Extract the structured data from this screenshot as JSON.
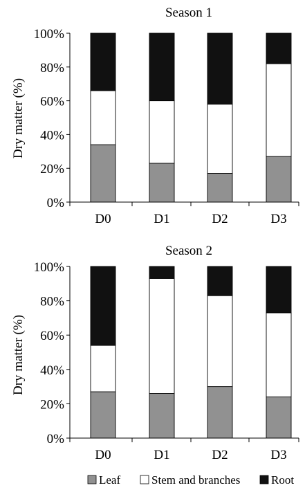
{
  "chart_data": [
    {
      "type": "bar",
      "stacked": true,
      "title": "Season 1",
      "ylabel": "Dry matter (%)",
      "xlabel": "",
      "ylim": [
        0,
        100
      ],
      "yticks": [
        "0%",
        "20%",
        "40%",
        "60%",
        "80%",
        "100%"
      ],
      "categories": [
        "D0",
        "D1",
        "D2",
        "D3"
      ],
      "series": [
        {
          "name": "Leaf",
          "values": [
            34,
            23,
            17,
            27
          ]
        },
        {
          "name": "Stem and branches",
          "values": [
            32,
            37,
            41,
            55
          ]
        },
        {
          "name": "Root",
          "values": [
            34,
            40,
            42,
            18
          ]
        }
      ],
      "grid": false
    },
    {
      "type": "bar",
      "stacked": true,
      "title": "Season 2",
      "ylabel": "Dry matter (%)",
      "xlabel": "",
      "ylim": [
        0,
        100
      ],
      "yticks": [
        "0%",
        "20%",
        "40%",
        "60%",
        "80%",
        "100%"
      ],
      "categories": [
        "D0",
        "D1",
        "D2",
        "D3"
      ],
      "series": [
        {
          "name": "Leaf",
          "values": [
            27,
            26,
            30,
            24
          ]
        },
        {
          "name": "Stem and branches",
          "values": [
            27,
            67,
            53,
            49
          ]
        },
        {
          "name": "Root",
          "values": [
            46,
            7,
            17,
            27
          ]
        }
      ],
      "grid": false
    }
  ],
  "legend": {
    "placement": "bottom",
    "items": [
      {
        "label": "Leaf",
        "color": "#919191"
      },
      {
        "label": "Stem and branches",
        "color": "#ffffff"
      },
      {
        "label": "Root",
        "color": "#111111"
      }
    ]
  },
  "colors": {
    "leaf": "#919191",
    "stem": "#ffffff",
    "root": "#111111",
    "outline": "#000000"
  }
}
